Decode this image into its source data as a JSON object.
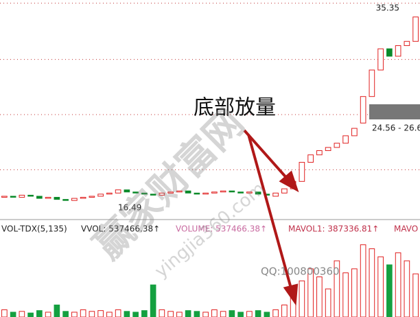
{
  "chart_data": {
    "type": "candlestick",
    "open": [
      17.5,
      17.6,
      17.5,
      17.7,
      17.6,
      17.4,
      17.5,
      17.3,
      17.2,
      17.4,
      17.5,
      17.6,
      17.8,
      17.9,
      18.2,
      18.0,
      17.9,
      17.8,
      17.7,
      17.9,
      18.0,
      18.1,
      17.9,
      17.8,
      17.9,
      18.0,
      18.1,
      18.0,
      17.9,
      18.0,
      17.8,
      17.6,
      17.9,
      18.3,
      19.0,
      20.8,
      21.5,
      21.9,
      22.2,
      22.6,
      23.3,
      24.5,
      27.0,
      29.5,
      31.5,
      30.8,
      31.8,
      32.2
    ],
    "close": [
      17.6,
      17.5,
      17.7,
      17.6,
      17.4,
      17.5,
      17.3,
      17.2,
      17.4,
      17.5,
      17.6,
      17.8,
      17.9,
      18.2,
      18.0,
      17.9,
      17.8,
      17.7,
      17.9,
      18.0,
      18.1,
      17.9,
      17.8,
      17.9,
      18.0,
      18.1,
      18.0,
      17.9,
      18.0,
      17.8,
      17.7,
      17.9,
      18.3,
      19.0,
      20.8,
      21.5,
      21.9,
      22.2,
      22.6,
      23.3,
      24.0,
      27.0,
      29.5,
      31.5,
      30.8,
      31.8,
      32.2,
      34.5
    ],
    "volume": [
      90000,
      60000,
      70000,
      50000,
      80000,
      60000,
      150000,
      70000,
      60000,
      90000,
      70000,
      80000,
      60000,
      90000,
      70000,
      60000,
      80000,
      400000,
      90000,
      70000,
      60000,
      80000,
      70000,
      60000,
      90000,
      70000,
      80000,
      60000,
      70000,
      80000,
      60000,
      90000,
      150000,
      300000,
      450000,
      600000,
      500000,
      350000,
      700000,
      550000,
      600000,
      900000,
      850000,
      750000,
      650000,
      800000,
      700000,
      537466.38
    ],
    "ylim": [
      15.4,
      36.1
    ],
    "volume_ylim": [
      0,
      1000000
    ],
    "up_color": "#e02020",
    "down_color": "#0a8a2a",
    "volume_down_color": "#14a040",
    "grid_lines": [
      35.8,
      30.5,
      25.3,
      20.1
    ],
    "high_label": "35.35",
    "low_label": "16.49",
    "range_label": "24.56 - 26.6",
    "volume_header": [
      "VOL-TDX(5,135)",
      "VVOL: 537466.38↑",
      "VOLUME: 537466.38↑",
      "MAVOL1: 387336.81↑",
      "MAVO"
    ],
    "annotation": "底部放量",
    "watermark": "赢家财富网",
    "watermark_url": "yingjia360.com",
    "watermark_qq": "QQ:100800360"
  }
}
